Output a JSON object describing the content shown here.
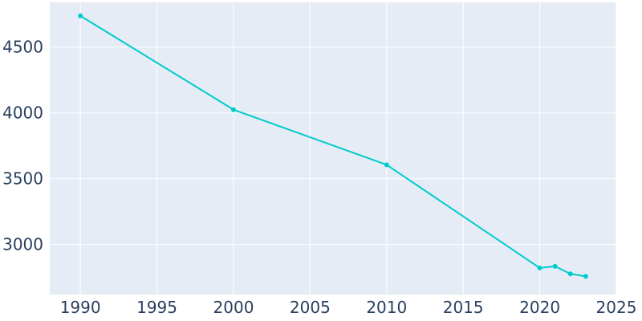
{
  "chart_data": {
    "type": "line",
    "title": "",
    "xlabel": "",
    "ylabel": "",
    "xlim": [
      1988,
      2025
    ],
    "ylim": [
      2620,
      4840
    ],
    "x_ticks": [
      1990,
      1995,
      2000,
      2005,
      2010,
      2015,
      2020,
      2025
    ],
    "y_ticks": [
      3000,
      3500,
      4000,
      4500
    ],
    "x_tick_labels": [
      "1990",
      "1995",
      "2000",
      "2005",
      "2010",
      "2015",
      "2020",
      "2025"
    ],
    "y_tick_labels": [
      "3000",
      "3500",
      "4000",
      "4500"
    ],
    "grid": true,
    "legend": "none",
    "series": [
      {
        "x": [
          1990,
          2000,
          2010,
          2020,
          2021,
          2022,
          2023
        ],
        "y": [
          4738,
          4025,
          3606,
          2822,
          2834,
          2777,
          2758
        ]
      }
    ]
  },
  "colors": {
    "plot_background": "#e5ecf6",
    "gridline": "#ffffff",
    "line": "#00cccc",
    "tick_text": "#2a3f5f"
  }
}
